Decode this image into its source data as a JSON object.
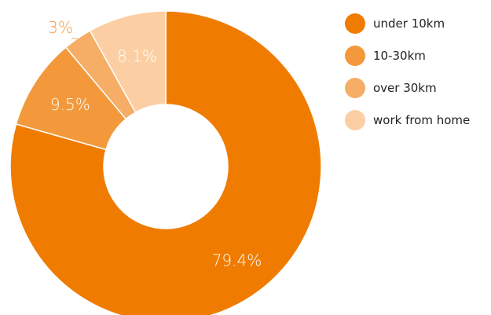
{
  "chart_data": {
    "type": "pie",
    "donut": true,
    "title": "",
    "categories": [
      "under 10km",
      "10-30km",
      "over 30km",
      "work from home"
    ],
    "values": [
      79.4,
      9.5,
      3,
      8.1
    ],
    "labels": [
      "79.4%",
      "9.5%",
      "3%",
      "8.1%"
    ],
    "colors": [
      "#ef7c00",
      "#f3993c",
      "#f6ad66",
      "#fbcfa3"
    ],
    "label_colors": [
      "#ffffff",
      "#ffffff",
      "#f3993c",
      "#ffffff"
    ],
    "legend_position": "right",
    "start": "top",
    "direction": "clockwise"
  }
}
